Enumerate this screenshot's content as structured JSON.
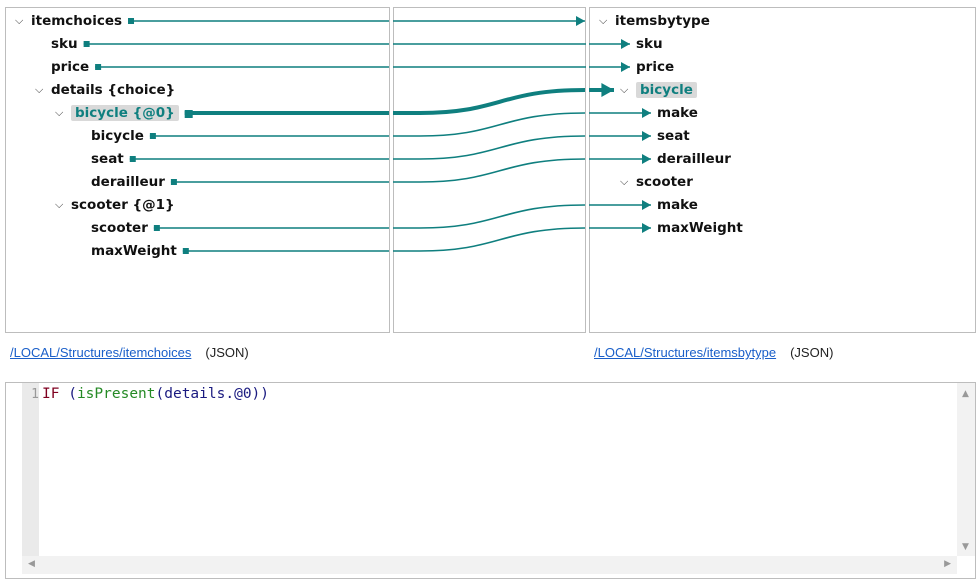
{
  "source_tree": [
    {
      "label": "itemchoices",
      "depth": 0,
      "expander": true
    },
    {
      "label": "sku",
      "depth": 1
    },
    {
      "label": "price",
      "depth": 1
    },
    {
      "label": "details {choice}",
      "depth": 1,
      "expander": true
    },
    {
      "label": "bicycle {@0}",
      "depth": 2,
      "expander": true,
      "selected": true
    },
    {
      "label": "bicycle",
      "depth": 3
    },
    {
      "label": "seat",
      "depth": 3
    },
    {
      "label": "derailleur",
      "depth": 3
    },
    {
      "label": "scooter {@1}",
      "depth": 2,
      "expander": true
    },
    {
      "label": "scooter",
      "depth": 3
    },
    {
      "label": "maxWeight",
      "depth": 3
    }
  ],
  "target_tree": [
    {
      "label": "itemsbytype",
      "depth": 0,
      "expander": true
    },
    {
      "label": "sku",
      "depth": 1
    },
    {
      "label": "price",
      "depth": 1
    },
    {
      "label": "bicycle",
      "depth": 1,
      "expander": true,
      "selected": true
    },
    {
      "label": "make",
      "depth": 2
    },
    {
      "label": "seat",
      "depth": 2
    },
    {
      "label": "derailleur",
      "depth": 2
    },
    {
      "label": "scooter",
      "depth": 1,
      "expander": true
    },
    {
      "label": "make",
      "depth": 2
    },
    {
      "label": "maxWeight",
      "depth": 2
    }
  ],
  "mappings": [
    {
      "from": 0,
      "to": 0
    },
    {
      "from": 1,
      "to": 1
    },
    {
      "from": 2,
      "to": 2
    },
    {
      "from": 4,
      "to": 3,
      "selected": true
    },
    {
      "from": 5,
      "to": 4
    },
    {
      "from": 6,
      "to": 5
    },
    {
      "from": 7,
      "to": 6
    },
    {
      "from": 9,
      "to": 8
    },
    {
      "from": 10,
      "to": 9
    }
  ],
  "source_path": {
    "link": "/LOCAL/Structures/itemchoices",
    "type": "(JSON)"
  },
  "target_path": {
    "link": "/LOCAL/Structures/itemsbytype",
    "type": "(JSON)"
  },
  "editor": {
    "line_number": "1",
    "tokens": [
      {
        "t": "IF",
        "c": "k"
      },
      {
        "t": " (",
        "c": "p"
      },
      {
        "t": "isPresent",
        "c": "f"
      },
      {
        "t": "(details.@0))",
        "c": "p"
      }
    ]
  },
  "colors": {
    "link_line": "#0f7f7f",
    "selected_text": "#0f7f7f"
  }
}
